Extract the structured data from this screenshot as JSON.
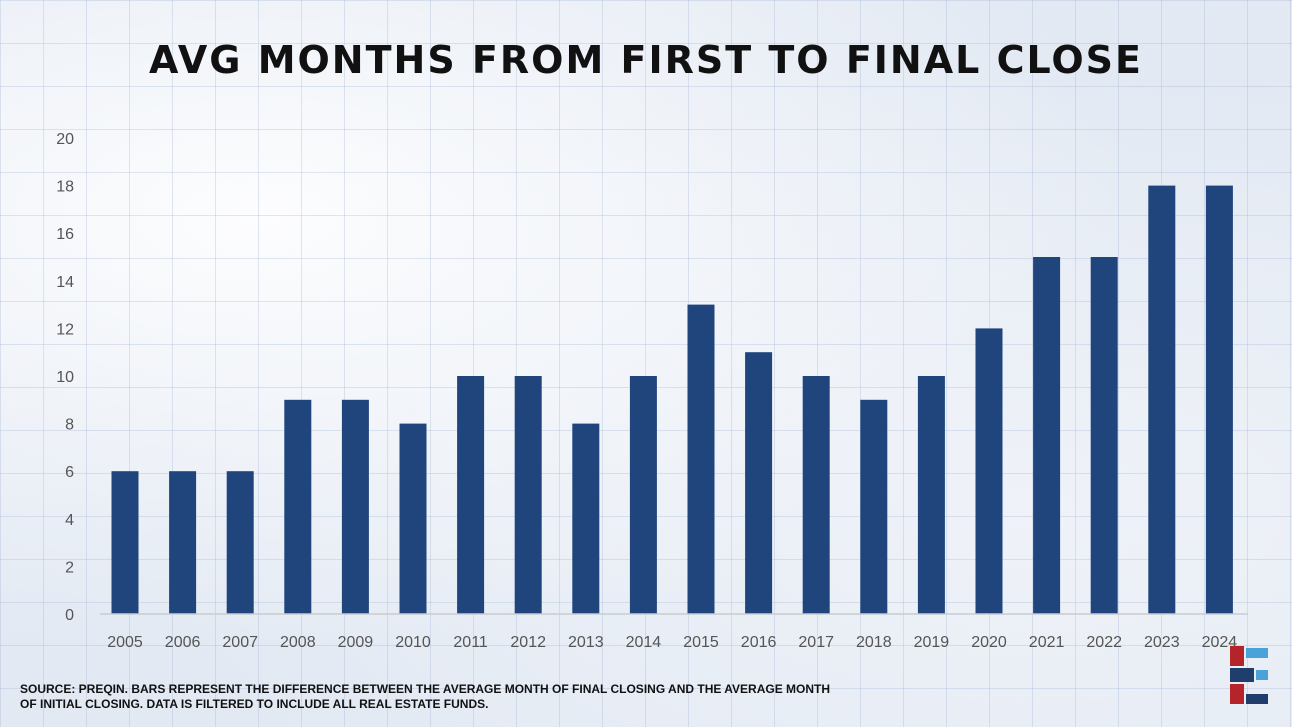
{
  "chart_data": {
    "type": "bar",
    "title": "AVG MONTHS FROM FIRST TO FINAL CLOSE",
    "categories": [
      "2005",
      "2006",
      "2007",
      "2008",
      "2009",
      "2010",
      "2011",
      "2012",
      "2013",
      "2014",
      "2015",
      "2016",
      "2017",
      "2018",
      "2019",
      "2020",
      "2021",
      "2022",
      "2023",
      "2024"
    ],
    "values": [
      6,
      6,
      6,
      9,
      9,
      8,
      10,
      10,
      8,
      10,
      13,
      11,
      10,
      9,
      10,
      12,
      15,
      15,
      18,
      18
    ],
    "xlabel": "",
    "ylabel": "",
    "ylim": [
      0,
      20
    ],
    "yticks": [
      0,
      2,
      4,
      6,
      8,
      10,
      12,
      14,
      16,
      18,
      20
    ],
    "grid": false,
    "bar_color": "#1f457c"
  },
  "footer": {
    "source": "SOURCE: PREQIN. BARS REPRESENT THE DIFFERENCE BETWEEN THE AVERAGE MONTH OF FINAL CLOSING AND THE AVERAGE MONTH OF INITIAL CLOSING. DATA IS FILTERED TO INCLUDE ALL REAL ESTATE FUNDS."
  },
  "logo": {
    "icon": "brand-logo-icon",
    "colors": [
      "#b5232b",
      "#1f3e6e",
      "#4aa3d8"
    ]
  }
}
